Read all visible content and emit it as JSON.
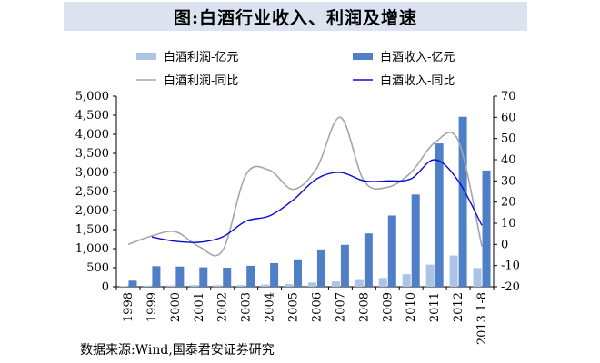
{
  "header": {
    "title": "图:白酒行业收入、利润及增速"
  },
  "source": "数据来源:Wind,国泰君安证券研究",
  "chart_data": {
    "type": "bar",
    "categories": [
      "1998",
      "1999",
      "2000",
      "2001",
      "2002",
      "2003",
      "2004",
      "2005",
      "2006",
      "2007",
      "2008",
      "2009",
      "2010",
      "2011",
      "2012",
      "2013 1-8"
    ],
    "ylim_left": [
      0,
      5000
    ],
    "ylim_right": [
      -20,
      70
    ],
    "yticks_left": [
      "0",
      "500",
      "1,000",
      "1,500",
      "2,000",
      "2,500",
      "3,000",
      "3,500",
      "4,000",
      "4,500",
      "5,000"
    ],
    "yticks_right": [
      "-20",
      "-10",
      "0",
      "10",
      "20",
      "30",
      "40",
      "50",
      "60",
      "70"
    ],
    "grid": false,
    "legend_position": "top",
    "series": [
      {
        "name": "白酒利润-亿元",
        "type": "bar",
        "axis": "left",
        "color": "#adc3e6",
        "values": [
          20,
          30,
          35,
          45,
          40,
          45,
          55,
          70,
          110,
          140,
          200,
          230,
          330,
          580,
          820,
          490
        ]
      },
      {
        "name": "白酒收入-亿元",
        "type": "bar",
        "axis": "left",
        "color": "#4f7fc6",
        "values": [
          160,
          540,
          530,
          510,
          500,
          550,
          620,
          720,
          980,
          1100,
          1400,
          1870,
          2420,
          3760,
          4460,
          3050
        ]
      },
      {
        "name": "白酒利润-同比",
        "type": "line",
        "axis": "right",
        "color": "#a6a6a6",
        "values": [
          0,
          4,
          6,
          -1,
          -3,
          33,
          35,
          26,
          36,
          60,
          30,
          27,
          34,
          48,
          49,
          -1
        ]
      },
      {
        "name": "白酒收入-同比",
        "type": "line",
        "axis": "right",
        "color": "#0a0ad8",
        "values": [
          null,
          3.5,
          1.5,
          1,
          3.5,
          11,
          13.5,
          21,
          31,
          34,
          30,
          30,
          31,
          40,
          30,
          9
        ]
      }
    ]
  }
}
